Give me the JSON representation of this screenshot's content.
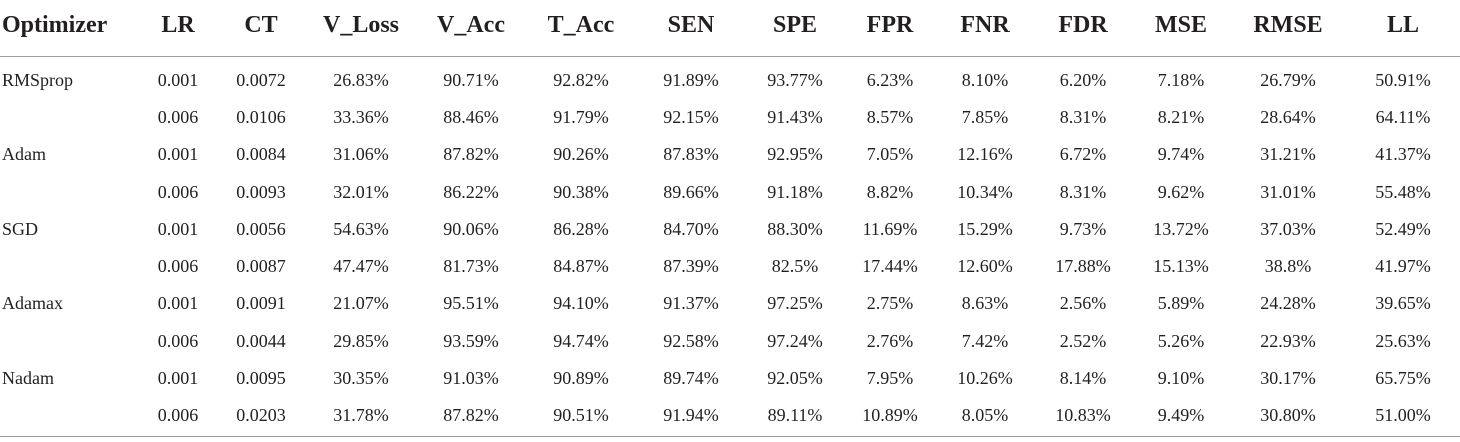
{
  "table": {
    "headers": [
      "Optimizer",
      "LR",
      "CT",
      "V_Loss",
      "V_Acc",
      "T_Acc",
      "SEN",
      "SPE",
      "FPR",
      "FNR",
      "FDR",
      "MSE",
      "RMSE",
      "LL"
    ],
    "rows": [
      [
        "RMSprop",
        "0.001",
        "0.0072",
        "26.83%",
        "90.71%",
        "92.82%",
        "91.89%",
        "93.77%",
        "6.23%",
        "8.10%",
        "6.20%",
        "7.18%",
        "26.79%",
        "50.91%"
      ],
      [
        "",
        "0.006",
        "0.0106",
        "33.36%",
        "88.46%",
        "91.79%",
        "92.15%",
        "91.43%",
        "8.57%",
        "7.85%",
        "8.31%",
        "8.21%",
        "28.64%",
        "64.11%"
      ],
      [
        "Adam",
        "0.001",
        "0.0084",
        "31.06%",
        "87.82%",
        "90.26%",
        "87.83%",
        "92.95%",
        "7.05%",
        "12.16%",
        "6.72%",
        "9.74%",
        "31.21%",
        "41.37%"
      ],
      [
        "",
        "0.006",
        "0.0093",
        "32.01%",
        "86.22%",
        "90.38%",
        "89.66%",
        "91.18%",
        "8.82%",
        "10.34%",
        "8.31%",
        "9.62%",
        "31.01%",
        "55.48%"
      ],
      [
        "SGD",
        "0.001",
        "0.0056",
        "54.63%",
        "90.06%",
        "86.28%",
        "84.70%",
        "88.30%",
        "11.69%",
        "15.29%",
        "9.73%",
        "13.72%",
        "37.03%",
        "52.49%"
      ],
      [
        "",
        "0.006",
        "0.0087",
        "47.47%",
        "81.73%",
        "84.87%",
        "87.39%",
        "82.5%",
        "17.44%",
        "12.60%",
        "17.88%",
        "15.13%",
        "38.8%",
        "41.97%"
      ],
      [
        "Adamax",
        "0.001",
        "0.0091",
        "21.07%",
        "95.51%",
        "94.10%",
        "91.37%",
        "97.25%",
        "2.75%",
        "8.63%",
        "2.56%",
        "5.89%",
        "24.28%",
        "39.65%"
      ],
      [
        "",
        "0.006",
        "0.0044",
        "29.85%",
        "93.59%",
        "94.74%",
        "92.58%",
        "97.24%",
        "2.76%",
        "7.42%",
        "2.52%",
        "5.26%",
        "22.93%",
        "25.63%"
      ],
      [
        "Nadam",
        "0.001",
        "0.0095",
        "30.35%",
        "91.03%",
        "90.89%",
        "89.74%",
        "92.05%",
        "7.95%",
        "10.26%",
        "8.14%",
        "9.10%",
        "30.17%",
        "65.75%"
      ],
      [
        "",
        "0.006",
        "0.0203",
        "31.78%",
        "87.82%",
        "90.51%",
        "91.94%",
        "89.11%",
        "10.89%",
        "8.05%",
        "10.83%",
        "9.49%",
        "30.80%",
        "51.00%"
      ]
    ]
  }
}
